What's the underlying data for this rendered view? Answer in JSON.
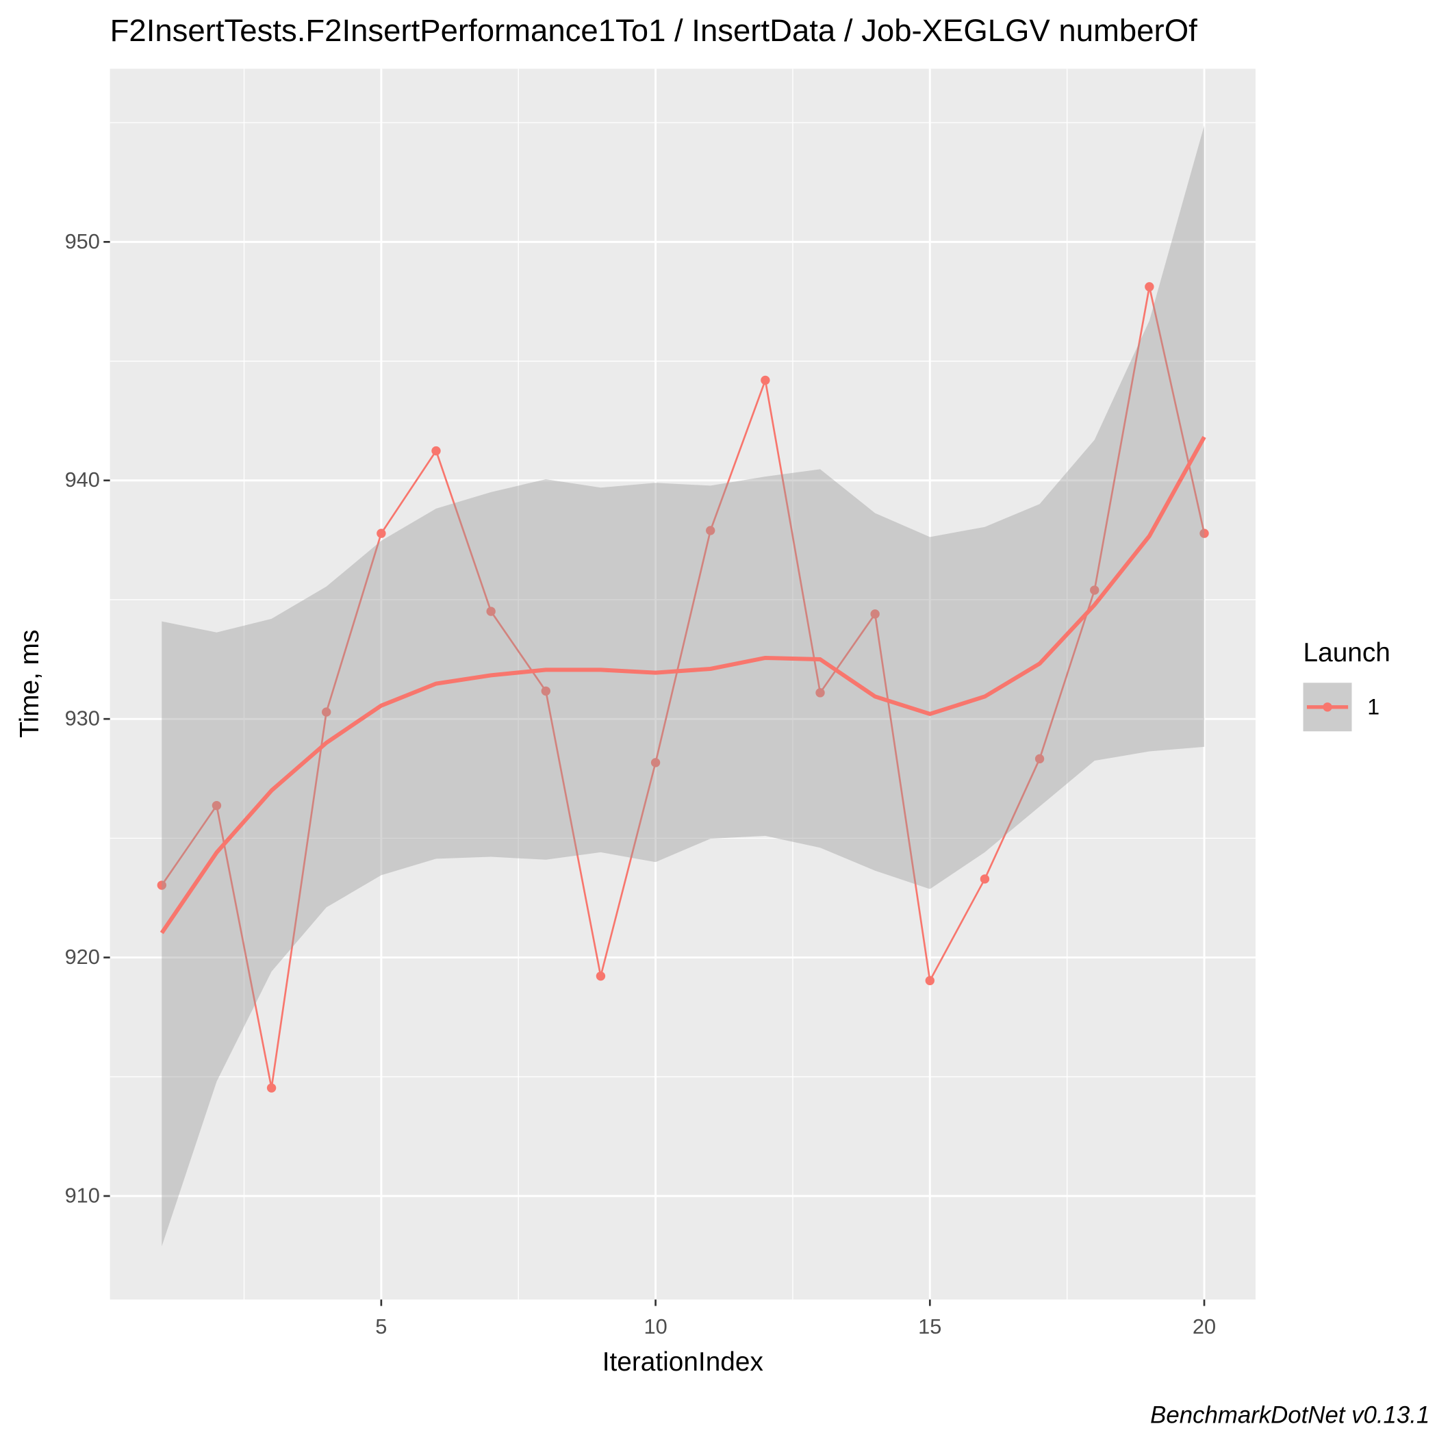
{
  "chart_data": {
    "type": "line",
    "title": "F2InsertTests.F2InsertPerformance1To1 / InsertData / Job-XEGLGV numberOf",
    "caption": "BenchmarkDotNet v0.13.1",
    "x_label": "IterationIndex",
    "y_label": "Time, ms",
    "legend_title": "Launch",
    "x": [
      1,
      2,
      3,
      4,
      5,
      6,
      7,
      8,
      9,
      10,
      11,
      12,
      13,
      14,
      15,
      16,
      17,
      18,
      19,
      20
    ],
    "series": [
      {
        "name": "1",
        "color": "#F8766D",
        "values": [
          923.03,
          926.37,
          914.53,
          930.29,
          937.78,
          941.24,
          934.51,
          931.17,
          919.22,
          928.17,
          937.9,
          944.2,
          931.1,
          934.4,
          919.03,
          923.29,
          928.33,
          935.4,
          948.12,
          937.78
        ]
      }
    ],
    "smooth": {
      "values": [
        921.03,
        924.4,
        927.0,
        929.0,
        930.56,
        931.48,
        931.83,
        932.06,
        932.06,
        931.94,
        932.1,
        932.56,
        932.5,
        930.94,
        930.21,
        930.94,
        932.32,
        934.78,
        937.67,
        941.82
      ],
      "upper": [
        934.09,
        933.63,
        934.2,
        935.55,
        937.47,
        938.82,
        939.51,
        940.05,
        939.7,
        939.9,
        939.78,
        940.16,
        940.47,
        938.63,
        937.63,
        938.05,
        939.01,
        941.7,
        946.7,
        954.88
      ],
      "lower": [
        907.89,
        914.8,
        919.41,
        922.1,
        923.45,
        924.14,
        924.22,
        924.1,
        924.41,
        924.0,
        924.98,
        925.1,
        924.6,
        923.64,
        922.87,
        924.41,
        926.33,
        928.25,
        928.64,
        928.83
      ]
    },
    "xlim": [
      0.056,
      20.935
    ],
    "ylim": [
      905.66,
      957.26
    ],
    "xticks": [
      5,
      10,
      15,
      20
    ],
    "yticks": [
      910,
      920,
      930,
      940,
      950
    ],
    "grid": true
  }
}
